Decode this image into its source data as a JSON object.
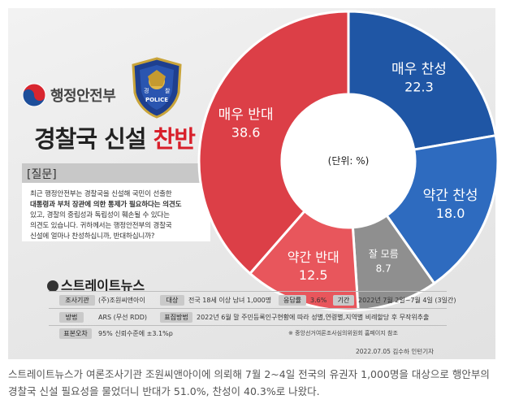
{
  "header": {
    "ministry_name": "행정안전부",
    "police_badge_text": "POLICE",
    "emblem_char_left": "경",
    "emblem_char_right": "찰",
    "title_main": "경찰국 신설",
    "title_accent": "찬반"
  },
  "question": {
    "label": "[질문]",
    "text": [
      "최근 행정안전부는 경찰국을 신설해 국민이 선출한",
      "대통령과 부처 장관에 의한 통제가 필요하다는 의견도",
      "있고, 경찰의 중립성과 독립성이 훼손될 수 있다는",
      "의견도 있습니다. 귀하께서는 행정안전부의 경찰국",
      "신설에 얼마나 찬성하십니까, 반대하십니까?"
    ]
  },
  "chart_data": {
    "type": "pie",
    "unit_label": "(단위: %)",
    "slices": [
      {
        "label": "매우 찬성",
        "value": 22.3,
        "color": "#1f56a5"
      },
      {
        "label": "약간 찬성",
        "value": 18.0,
        "color": "#2e6bbf"
      },
      {
        "label": "잘 모름",
        "value": 8.7,
        "color": "#8f8f8f"
      },
      {
        "label": "약간 반대",
        "value": 12.5,
        "color": "#e8565c"
      },
      {
        "label": "매우 반대",
        "value": 38.6,
        "color": "#dc3f47"
      }
    ]
  },
  "footer": {
    "brand": "스트레이트뉴스",
    "rows": [
      [
        {
          "tag": "조사기관",
          "value": "(주)조원씨앤아이"
        },
        {
          "tag": "대상",
          "value": "전국 18세 이상 남녀 1,000명"
        },
        {
          "tag": "응답률",
          "value": "3.6%"
        },
        {
          "tag": "기간",
          "value": "2022년 7월 2일~7월 4일 (3일간)"
        }
      ],
      [
        {
          "tag": "방법",
          "value": "ARS (무선 RDD)"
        },
        {
          "tag": "표집방법",
          "value": "2022년 6월 말 주민등록인구현황에 따라 성별,연령별,지역별 비례할당 후 무작위추출"
        }
      ],
      [
        {
          "tag": "표본오차",
          "value": "95% 신뢰수준에 ±3.1%p"
        }
      ]
    ],
    "note": "※ 중앙선거여론조사심의위원회 홈페이지 참조",
    "credit": "2022.07.05 김수하 인턴기자"
  },
  "caption": "스트레이트뉴스가 여론조사기관 조원씨앤아이에 의뢰해 7월 2~4일 전국의 유권자 1,000명을 대상으로 행안부의 경찰국 신설 필요성을 물었더니 반대가 51.0%, 찬성이 40.3%로 나왔다."
}
